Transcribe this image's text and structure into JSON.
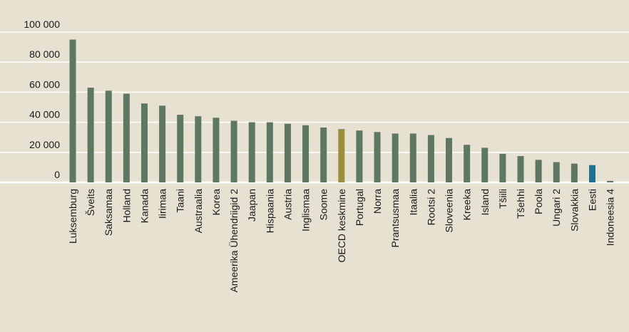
{
  "chart_data": {
    "type": "bar",
    "title": "",
    "xlabel": "",
    "ylabel": "",
    "ylim": [
      0,
      100000
    ],
    "yticks": [
      0,
      20000,
      40000,
      60000,
      80000,
      100000
    ],
    "ytick_labels": [
      "0",
      "20 000",
      "40 000",
      "60 000",
      "80 000",
      "100 000"
    ],
    "grid": true,
    "legend": "none",
    "colors": {
      "background": "#e6e1d1",
      "bar_default": "#5d7762",
      "bar_oecd": "#9c8e3e",
      "bar_estonia": "#236f90",
      "gridline": "#ffffff",
      "text": "#1a1a1a"
    },
    "categories": [
      "Luksemburg",
      "Šveits",
      "Saksamaa",
      "Holland",
      "Kanada",
      "Iirimaa",
      "Taani",
      "Austraalia",
      "Korea",
      "Ameerika Ühendriigid 2",
      "Jaapan",
      "Hispaania",
      "Austria",
      "Inglismaa",
      "Soome",
      "OECD keskmine",
      "Portugal",
      "Norra",
      "Prantsusmaa",
      "Itaalia",
      "Rootsi 2",
      "Sloveenia",
      "Kreeka",
      "Island",
      "Tšiili",
      "Tšehhi",
      "Poola",
      "Ungari 2",
      "Slovakkia",
      "Eesti",
      "Indoneesia 4"
    ],
    "values": [
      95000,
      63000,
      61000,
      59000,
      52500,
      51000,
      45000,
      44000,
      43000,
      41000,
      40000,
      40000,
      39000,
      38000,
      36500,
      35500,
      34500,
      33500,
      32500,
      32500,
      31500,
      29500,
      25000,
      23000,
      19000,
      17500,
      15000,
      13500,
      12500,
      11500,
      1000
    ],
    "highlight": {
      "OECD keskmine": "bar_oecd",
      "Eesti": "bar_estonia"
    }
  }
}
